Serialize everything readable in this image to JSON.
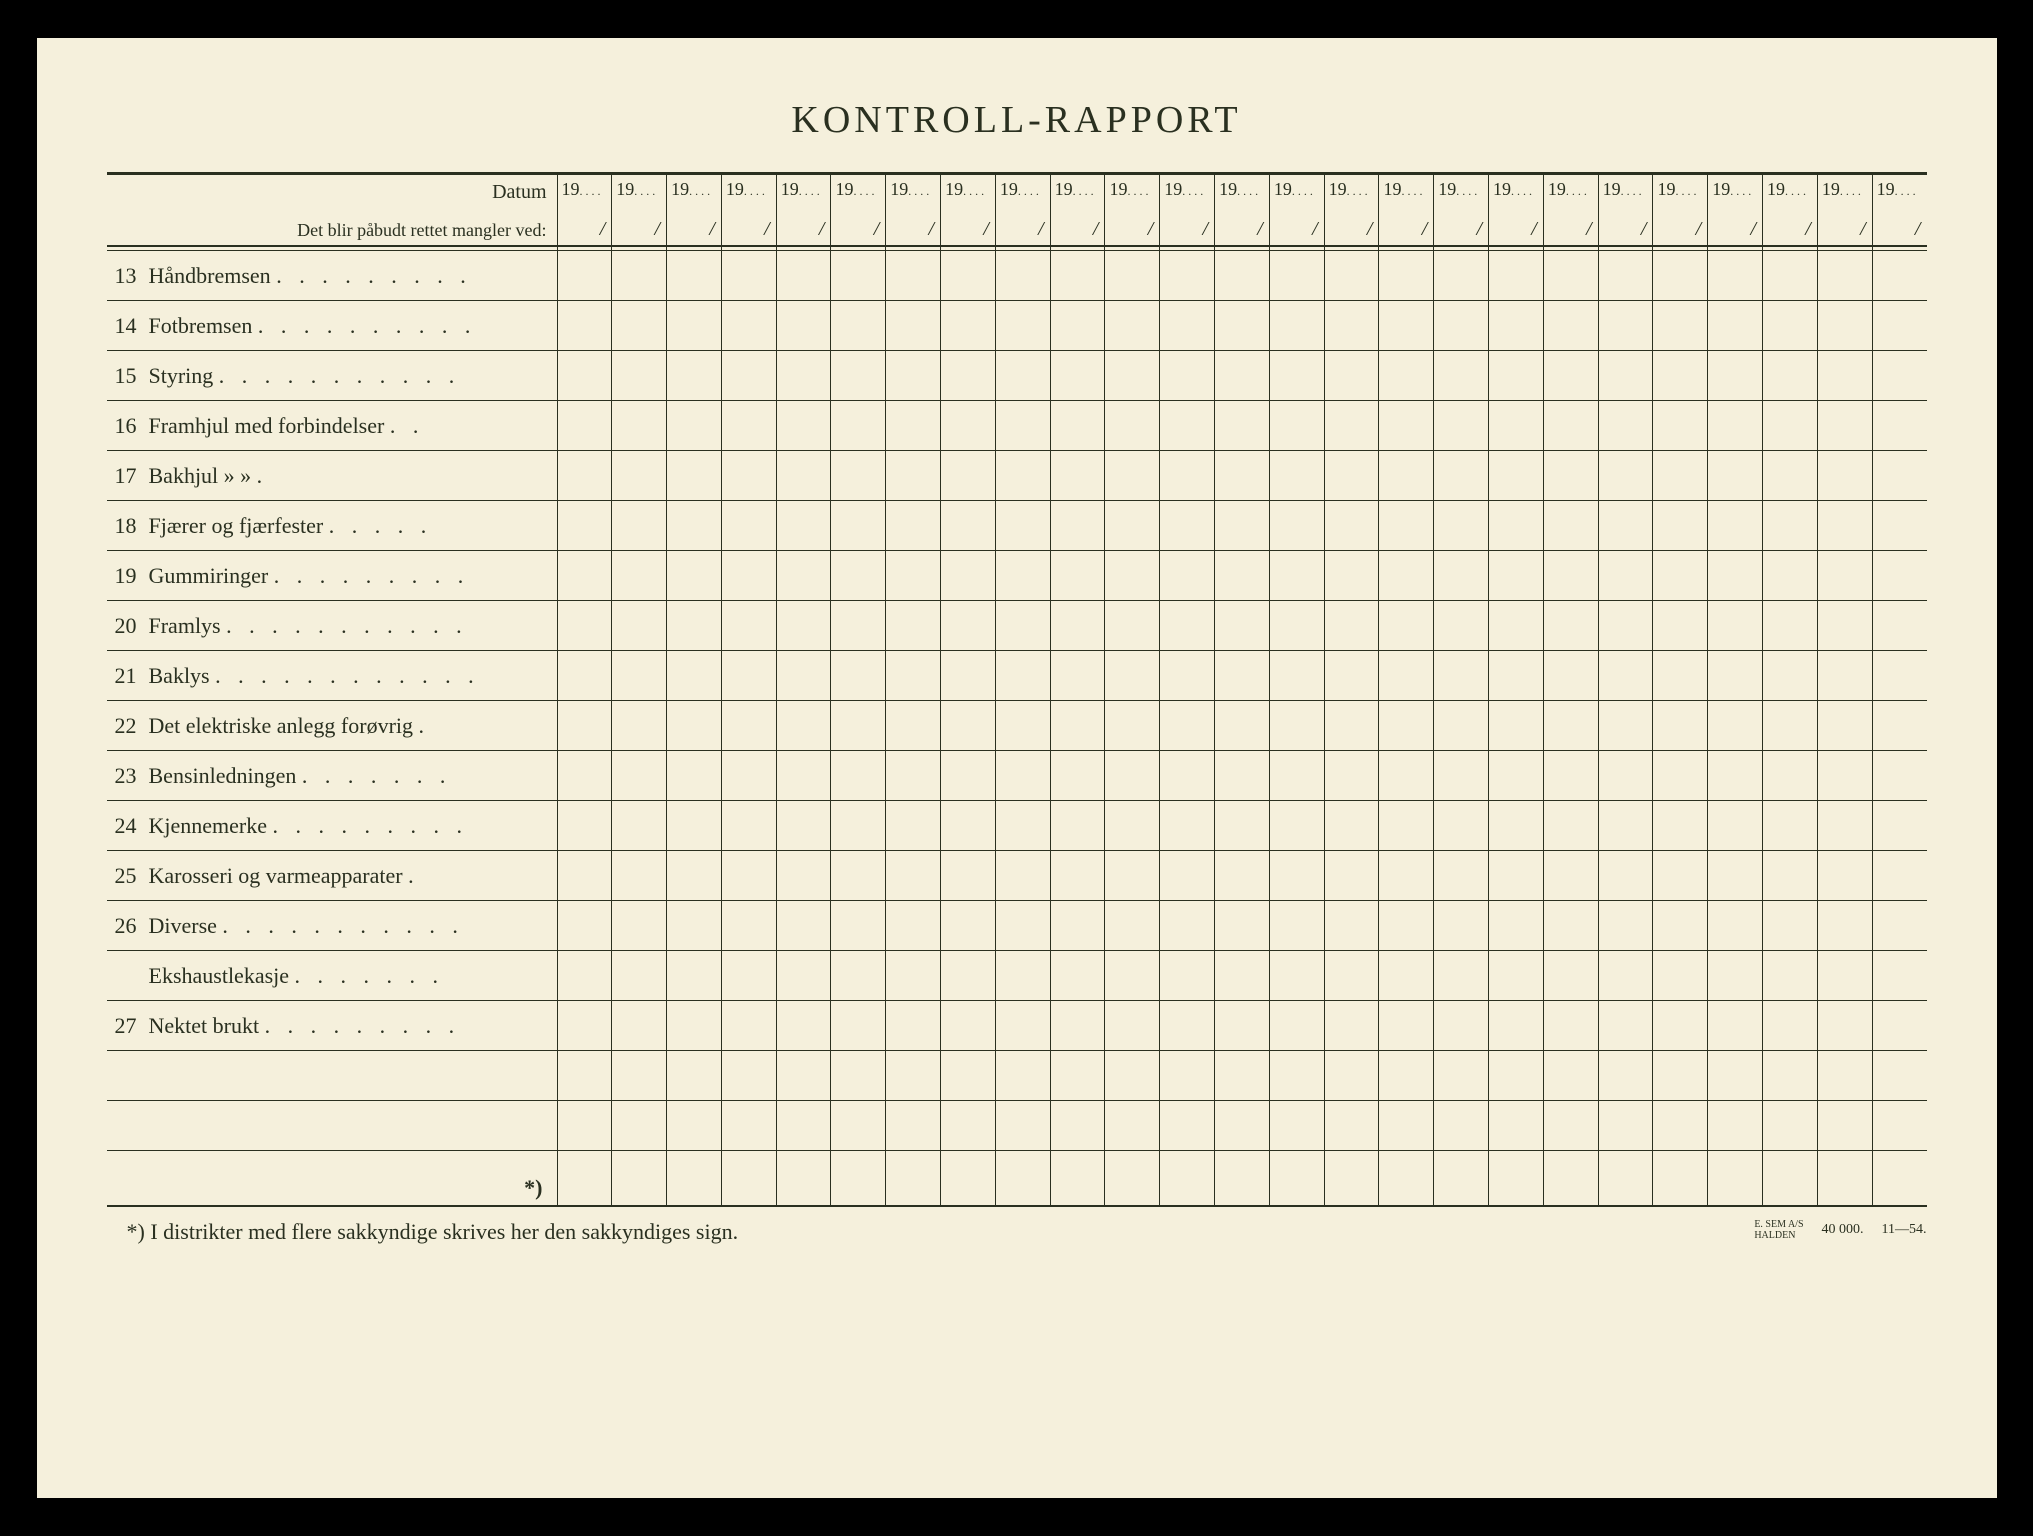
{
  "title": "KONTROLL-RAPPORT",
  "header": {
    "datum_label": "Datum",
    "subtitle": "Det blir påbudt rettet mangler ved:",
    "year_prefix": "19",
    "num_date_columns": 25
  },
  "rows": [
    {
      "num": "13",
      "text": "Håndbremsen"
    },
    {
      "num": "14",
      "text": "Fotbremsen"
    },
    {
      "num": "15",
      "text": "Styring"
    },
    {
      "num": "16",
      "text": "Framhjul med forbindelser"
    },
    {
      "num": "17",
      "text": "Bakhjul       »           »"
    },
    {
      "num": "18",
      "text": "Fjærer og fjærfester"
    },
    {
      "num": "19",
      "text": "Gummiringer"
    },
    {
      "num": "20",
      "text": "Framlys"
    },
    {
      "num": "21",
      "text": "Baklys"
    },
    {
      "num": "22",
      "text": "Det elektriske anlegg forøvrig"
    },
    {
      "num": "23",
      "text": "Bensinledningen"
    },
    {
      "num": "24",
      "text": "Kjennemerke"
    },
    {
      "num": "25",
      "text": "Karosseri og varmeapparater"
    },
    {
      "num": "26",
      "text": "Diverse"
    },
    {
      "num": "",
      "text": "Ekshaustlekasje"
    },
    {
      "num": "27",
      "text": "Nektet brukt"
    },
    {
      "num": "",
      "text": ""
    },
    {
      "num": "",
      "text": ""
    }
  ],
  "footnote_mark": "*)",
  "footnote_text": "*)   I distrikter med flere sakkyndige skrives her den sakkyndiges sign.",
  "imprint": {
    "publisher_line1": "E. SEM A/S",
    "publisher_line2": "HALDEN",
    "qty": "40 000.",
    "code": "11—54."
  },
  "colors": {
    "paper": "#f5f0dc",
    "ink": "#2a3020",
    "frame": "#000000"
  }
}
